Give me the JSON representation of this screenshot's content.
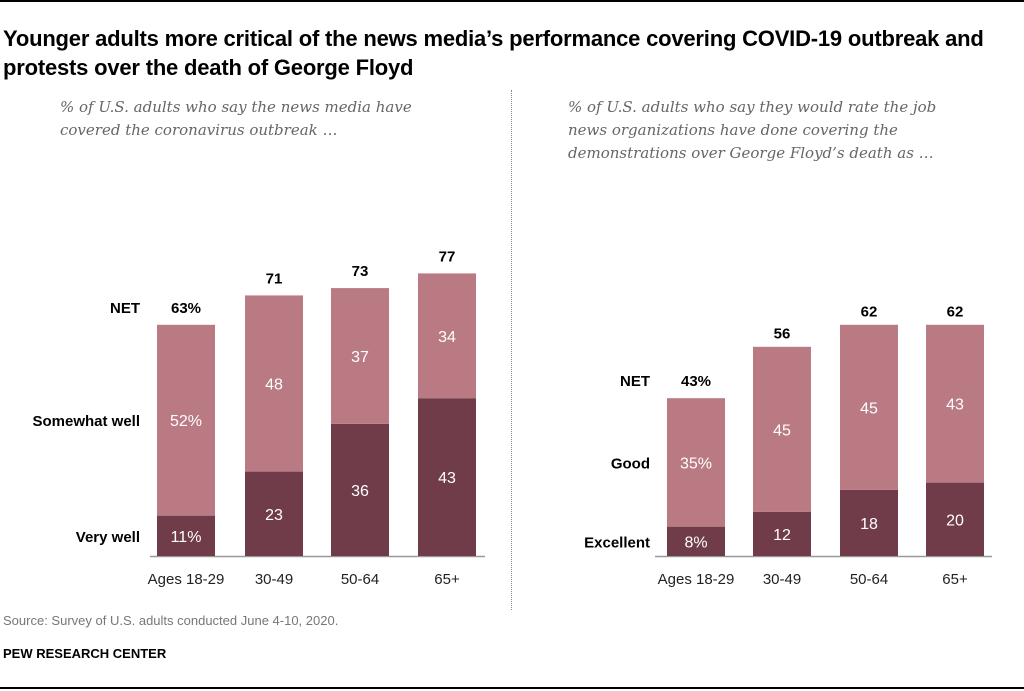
{
  "title": "Younger adults more critical of the news media’s performance covering COVID-19 outbreak and protests over the death of George Floyd",
  "source": "Source: Survey of U.S. adults conducted June 4-10, 2020.",
  "brand": "PEW RESEARCH CENTER",
  "colors": {
    "light": "#b97a84",
    "dark": "#713c49"
  },
  "chart_data": [
    {
      "type": "bar",
      "stacked": true,
      "subtitle": "% of U.S. adults who say the news media have covered the coronavirus outbreak …",
      "categories": [
        "Ages 18-29",
        "30-49",
        "50-64",
        "65+"
      ],
      "series": [
        {
          "name": "Very well",
          "values": [
            11,
            23,
            36,
            43
          ],
          "labels": [
            "11%",
            "23",
            "36",
            "43"
          ]
        },
        {
          "name": "Somewhat well",
          "values": [
            52,
            48,
            37,
            34
          ],
          "labels": [
            "52%",
            "48",
            "37",
            "34"
          ]
        }
      ],
      "net": {
        "name": "NET",
        "values": [
          63,
          71,
          73,
          77
        ],
        "labels": [
          "63%",
          "71",
          "73",
          "77"
        ]
      }
    },
    {
      "type": "bar",
      "stacked": true,
      "subtitle": "% of U.S. adults who say they would rate the job news organizations have done covering the demonstrations over George Floyd’s death as …",
      "categories": [
        "Ages 18-29",
        "30-49",
        "50-64",
        "65+"
      ],
      "series": [
        {
          "name": "Excellent",
          "values": [
            8,
            12,
            18,
            20
          ],
          "labels": [
            "8%",
            "12",
            "18",
            "20"
          ]
        },
        {
          "name": "Good",
          "values": [
            35,
            45,
            45,
            43
          ],
          "labels": [
            "35%",
            "45",
            "45",
            "43"
          ]
        }
      ],
      "net": {
        "name": "NET",
        "values": [
          43,
          56,
          62,
          62
        ],
        "labels": [
          "43%",
          "56",
          "62",
          "62"
        ]
      }
    }
  ]
}
